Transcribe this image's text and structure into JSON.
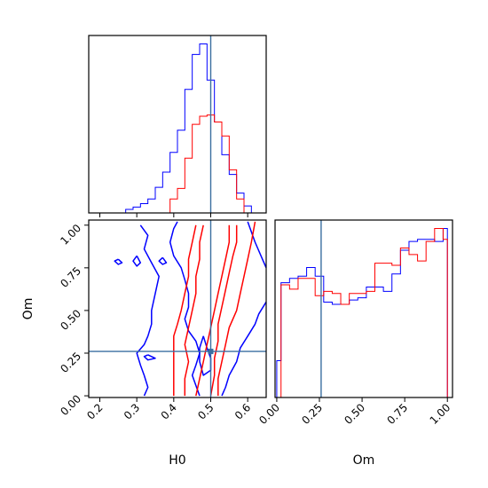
{
  "colors": {
    "series_a": "#0000ff",
    "series_b": "#ff0000",
    "truth": "#3a6fa0"
  },
  "chart_data": {
    "type": "corner",
    "parameters": [
      "H0",
      "Om"
    ],
    "truth": {
      "H0": 0.5,
      "Om": 0.26
    },
    "panels": [
      {
        "id": "h0-hist",
        "type": "histogram",
        "xlim": [
          0.17,
          0.65
        ],
        "xticks": [
          "0.2",
          "0.3",
          "0.4",
          "0.5",
          "0.6"
        ],
        "show_tick_labels": false,
        "bin_edges": [
          0.17,
          0.19,
          0.21,
          0.23,
          0.25,
          0.27,
          0.29,
          0.31,
          0.33,
          0.35,
          0.37,
          0.39,
          0.41,
          0.43,
          0.45,
          0.47,
          0.49,
          0.51,
          0.53,
          0.55,
          0.57,
          0.59,
          0.61,
          0.63,
          0.65
        ],
        "series": [
          {
            "color": "series_a",
            "values": [
              0,
              0,
              0,
              0,
              0,
              0.3,
              0.5,
              0.8,
              1.2,
              2.2,
              3.5,
              5.2,
              7.1,
              10.6,
              13.6,
              14.5,
              11.4,
              7.8,
              5.0,
              3.3,
              1.7,
              0.6,
              0,
              0
            ]
          },
          {
            "color": "series_b",
            "values": [
              0,
              0,
              0,
              0,
              0,
              0,
              0,
              0,
              0,
              0,
              0,
              1.2,
              2.1,
              4.7,
              7.6,
              8.3,
              8.4,
              7.8,
              6.6,
              3.7,
              1.2,
              0,
              0,
              0
            ]
          }
        ]
      },
      {
        "id": "h0-om-contour",
        "type": "contour",
        "xlim": [
          0.17,
          0.65
        ],
        "ylim": [
          -0.01,
          1.03
        ],
        "xticks": [
          "0.2",
          "0.3",
          "0.4",
          "0.5",
          "0.6"
        ],
        "yticks": [
          "0.00",
          "0.25",
          "0.50",
          "0.75",
          "1.00"
        ],
        "xlabel": "H0",
        "ylabel": "Om",
        "contours": [
          {
            "color": "series_a",
            "points": [
              [
                0.41,
                1.02
              ],
              [
                0.4,
                0.98
              ],
              [
                0.39,
                0.9
              ],
              [
                0.4,
                0.82
              ],
              [
                0.42,
                0.75
              ],
              [
                0.43,
                0.68
              ],
              [
                0.44,
                0.6
              ],
              [
                0.44,
                0.52
              ],
              [
                0.43,
                0.45
              ],
              [
                0.44,
                0.38
              ],
              [
                0.46,
                0.32
              ],
              [
                0.47,
                0.25
              ],
              [
                0.46,
                0.18
              ],
              [
                0.45,
                0.12
              ],
              [
                0.46,
                0.06
              ],
              [
                0.47,
                0.0
              ]
            ]
          },
          {
            "color": "series_a",
            "points": [
              [
                0.31,
                1.0
              ],
              [
                0.33,
                0.94
              ],
              [
                0.32,
                0.86
              ],
              [
                0.34,
                0.78
              ],
              [
                0.36,
                0.7
              ],
              [
                0.35,
                0.6
              ],
              [
                0.34,
                0.5
              ],
              [
                0.34,
                0.42
              ],
              [
                0.33,
                0.35
              ],
              [
                0.32,
                0.3
              ],
              [
                0.3,
                0.25
              ],
              [
                0.31,
                0.18
              ],
              [
                0.32,
                0.12
              ],
              [
                0.33,
                0.05
              ],
              [
                0.32,
                0.0
              ]
            ]
          },
          {
            "color": "series_a",
            "points": [
              [
                0.6,
                1.02
              ],
              [
                0.62,
                0.9
              ],
              [
                0.64,
                0.8
              ],
              [
                0.65,
                0.75
              ]
            ]
          },
          {
            "color": "series_a",
            "points": [
              [
                0.65,
                0.55
              ],
              [
                0.63,
                0.48
              ],
              [
                0.62,
                0.42
              ],
              [
                0.6,
                0.35
              ],
              [
                0.58,
                0.28
              ],
              [
                0.57,
                0.2
              ],
              [
                0.55,
                0.12
              ],
              [
                0.54,
                0.05
              ],
              [
                0.53,
                0.0
              ]
            ]
          },
          {
            "color": "series_a",
            "points": [
              [
                0.48,
                0.35
              ],
              [
                0.49,
                0.28
              ],
              [
                0.5,
                0.22
              ],
              [
                0.5,
                0.15
              ],
              [
                0.48,
                0.12
              ],
              [
                0.47,
                0.2
              ],
              [
                0.47,
                0.28
              ],
              [
                0.48,
                0.35
              ]
            ]
          },
          {
            "color": "series_a",
            "points": [
              [
                0.25,
                0.8
              ],
              [
                0.26,
                0.78
              ],
              [
                0.25,
                0.77
              ],
              [
                0.24,
                0.79
              ],
              [
                0.25,
                0.8
              ]
            ]
          },
          {
            "color": "series_a",
            "points": [
              [
                0.3,
                0.82
              ],
              [
                0.31,
                0.78
              ],
              [
                0.3,
                0.76
              ],
              [
                0.29,
                0.79
              ],
              [
                0.3,
                0.82
              ]
            ]
          },
          {
            "color": "series_a",
            "points": [
              [
                0.37,
                0.81
              ],
              [
                0.38,
                0.78
              ],
              [
                0.37,
                0.77
              ],
              [
                0.36,
                0.79
              ],
              [
                0.37,
                0.81
              ]
            ]
          },
          {
            "color": "series_a",
            "points": [
              [
                0.33,
                0.24
              ],
              [
                0.35,
                0.22
              ],
              [
                0.33,
                0.21
              ],
              [
                0.32,
                0.23
              ],
              [
                0.33,
                0.24
              ]
            ]
          },
          {
            "color": "series_b",
            "points": [
              [
                0.46,
                1.0
              ],
              [
                0.45,
                0.9
              ],
              [
                0.44,
                0.8
              ],
              [
                0.44,
                0.7
              ],
              [
                0.43,
                0.6
              ],
              [
                0.42,
                0.5
              ],
              [
                0.41,
                0.42
              ],
              [
                0.4,
                0.35
              ],
              [
                0.4,
                0.25
              ],
              [
                0.4,
                0.18
              ],
              [
                0.4,
                0.1
              ],
              [
                0.4,
                0.0
              ]
            ]
          },
          {
            "color": "series_b",
            "points": [
              [
                0.48,
                1.0
              ],
              [
                0.47,
                0.9
              ],
              [
                0.47,
                0.8
              ],
              [
                0.46,
                0.7
              ],
              [
                0.46,
                0.6
              ],
              [
                0.45,
                0.5
              ],
              [
                0.44,
                0.4
              ],
              [
                0.43,
                0.3
              ],
              [
                0.44,
                0.2
              ],
              [
                0.43,
                0.1
              ],
              [
                0.43,
                0.0
              ]
            ]
          },
          {
            "color": "series_b",
            "points": [
              [
                0.55,
                1.0
              ],
              [
                0.55,
                0.9
              ],
              [
                0.54,
                0.8
              ],
              [
                0.53,
                0.7
              ],
              [
                0.52,
                0.6
              ],
              [
                0.51,
                0.5
              ],
              [
                0.5,
                0.4
              ],
              [
                0.49,
                0.3
              ],
              [
                0.48,
                0.2
              ],
              [
                0.47,
                0.1
              ],
              [
                0.46,
                0.0
              ]
            ]
          },
          {
            "color": "series_b",
            "points": [
              [
                0.57,
                1.0
              ],
              [
                0.57,
                0.9
              ],
              [
                0.56,
                0.82
              ],
              [
                0.55,
                0.72
              ],
              [
                0.54,
                0.62
              ],
              [
                0.53,
                0.52
              ],
              [
                0.52,
                0.42
              ],
              [
                0.52,
                0.32
              ],
              [
                0.51,
                0.22
              ],
              [
                0.51,
                0.12
              ],
              [
                0.5,
                0.0
              ]
            ]
          },
          {
            "color": "series_b",
            "points": [
              [
                0.62,
                1.02
              ],
              [
                0.61,
                0.9
              ],
              [
                0.6,
                0.8
              ],
              [
                0.59,
                0.7
              ],
              [
                0.58,
                0.6
              ],
              [
                0.57,
                0.5
              ],
              [
                0.55,
                0.4
              ],
              [
                0.54,
                0.3
              ],
              [
                0.53,
                0.2
              ],
              [
                0.52,
                0.1
              ],
              [
                0.52,
                0.0
              ]
            ]
          }
        ]
      },
      {
        "id": "om-hist",
        "type": "histogram",
        "xlim": [
          -0.01,
          1.03
        ],
        "xticks": [
          "0.00",
          "0.25",
          "0.50",
          "0.75",
          "1.00"
        ],
        "xlabel": "Om",
        "bin_edges": [
          0.0,
          0.025,
          0.075,
          0.125,
          0.175,
          0.225,
          0.275,
          0.325,
          0.375,
          0.425,
          0.475,
          0.525,
          0.575,
          0.625,
          0.675,
          0.725,
          0.775,
          0.825,
          0.875,
          0.925,
          0.975,
          1.0
        ],
        "series": [
          {
            "color": "series_a",
            "values": [
              0.17,
              0.53,
              0.55,
              0.56,
              0.6,
              0.56,
              0.44,
              0.43,
              0.43,
              0.45,
              0.46,
              0.51,
              0.51,
              0.49,
              0.57,
              0.68,
              0.72,
              0.73,
              0.73,
              0.72,
              0.78
            ]
          },
          {
            "color": "series_b",
            "values": [
              0.0,
              0.52,
              0.5,
              0.55,
              0.55,
              0.47,
              0.49,
              0.48,
              0.43,
              0.48,
              0.48,
              0.49,
              0.62,
              0.62,
              0.61,
              0.69,
              0.66,
              0.63,
              0.72,
              0.78,
              0.73
            ]
          }
        ]
      }
    ]
  }
}
